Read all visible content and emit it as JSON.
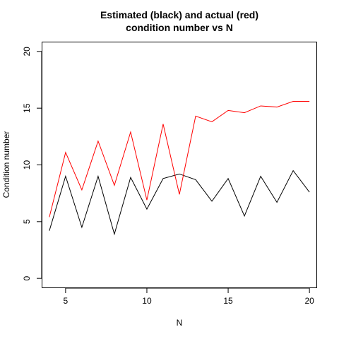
{
  "chart_data": {
    "type": "line",
    "title": "Estimated (black) and actual (red)\ncondition number vs N",
    "xlabel": "N",
    "ylabel": "Condition number",
    "xlim": [
      3.55,
      20.45
    ],
    "ylim": [
      -0.83,
      20.83
    ],
    "xticks": [
      5,
      10,
      15,
      20
    ],
    "yticks": [
      0,
      5,
      10,
      15,
      20
    ],
    "grid": false,
    "legend": "none",
    "x": [
      4,
      5,
      6,
      7,
      8,
      9,
      10,
      11,
      12,
      13,
      14,
      15,
      16,
      17,
      18,
      19,
      20
    ],
    "series": [
      {
        "color": "#000000",
        "values": [
          4.2,
          9.0,
          4.5,
          9.0,
          3.9,
          8.9,
          6.1,
          8.8,
          9.2,
          8.7,
          6.8,
          8.8,
          5.5,
          9.0,
          6.7,
          9.5,
          7.6
        ]
      },
      {
        "color": "#ff0000",
        "values": [
          5.4,
          11.1,
          7.8,
          12.1,
          8.2,
          12.9,
          6.9,
          13.6,
          7.4,
          14.3,
          13.8,
          14.8,
          14.6,
          15.2,
          15.1,
          15.6,
          15.6
        ]
      }
    ]
  }
}
